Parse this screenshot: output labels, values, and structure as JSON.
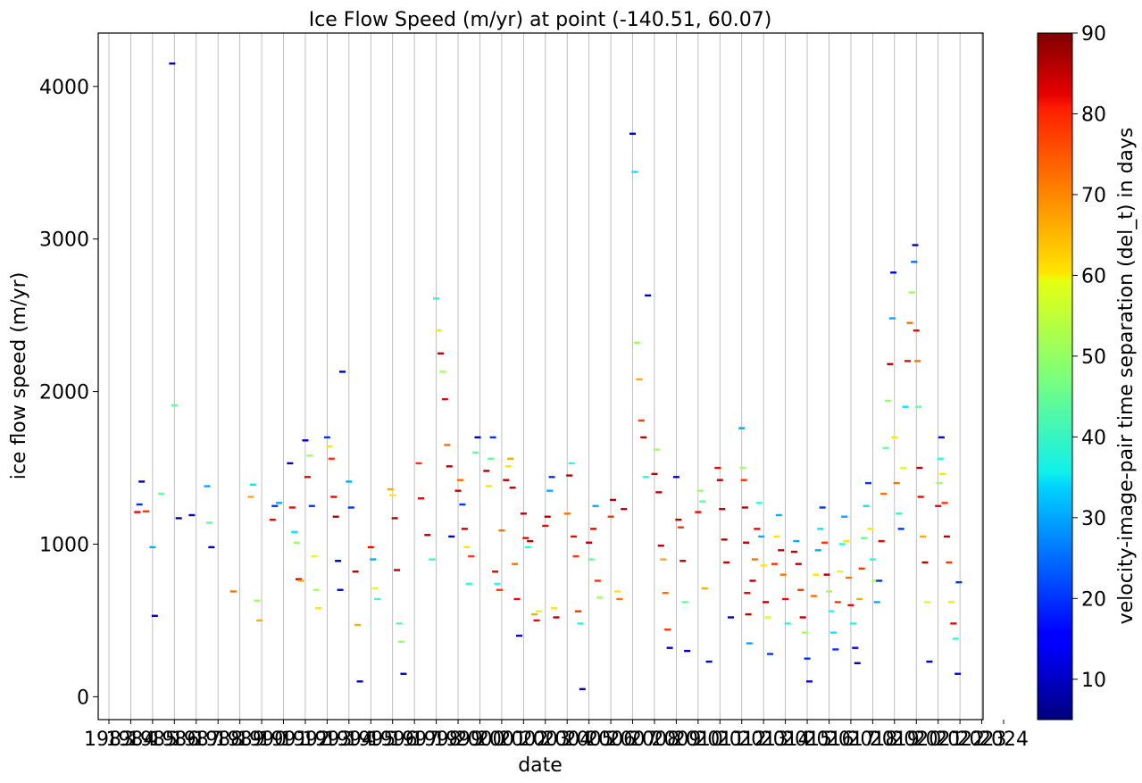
{
  "chart_data": {
    "type": "scatter",
    "title": "Ice Flow Speed (m/yr) at point (-140.51, 60.07)",
    "xlabel": "date",
    "ylabel": "ice flow speed (m/yr)",
    "xlim": [
      1983,
      2024
    ],
    "ylim": [
      -150,
      4350
    ],
    "y_ticks": [
      0,
      1000,
      2000,
      3000,
      4000
    ],
    "x_ticks": [
      "1983",
      "1984",
      "1985",
      "1986",
      "1987",
      "1988",
      "1989",
      "1990",
      "1991",
      "1992",
      "1993",
      "1994",
      "1995",
      "1996",
      "1997",
      "1998",
      "1999",
      "2000",
      "2001",
      "2002",
      "2003",
      "2004",
      "2005",
      "2006",
      "2007",
      "2008",
      "2009",
      "2010",
      "2011",
      "2012",
      "2013",
      "2014",
      "2015",
      "2016",
      "2017",
      "2018",
      "2019",
      "2020",
      "2021",
      "2022",
      "2023",
      "2024"
    ],
    "grid": "vertical lines at year ticks",
    "colorbar": {
      "label": "velocity-image-pair time separation (del_t) in days",
      "colormap": "jet",
      "range": [
        5,
        90
      ],
      "ticks": [
        10,
        20,
        30,
        40,
        50,
        60,
        70,
        80,
        90
      ]
    },
    "points": [
      [
        1984.3,
        1210,
        80
      ],
      [
        1984.4,
        1260,
        20
      ],
      [
        1984.5,
        1410,
        10
      ],
      [
        1984.7,
        1215,
        75
      ],
      [
        1985.0,
        980,
        30
      ],
      [
        1985.1,
        530,
        10
      ],
      [
        1985.4,
        1330,
        45
      ],
      [
        1985.9,
        4150,
        10
      ],
      [
        1986.0,
        1910,
        45
      ],
      [
        1986.2,
        1170,
        10
      ],
      [
        1986.8,
        1190,
        10
      ],
      [
        1987.5,
        1380,
        30
      ],
      [
        1987.6,
        1140,
        45
      ],
      [
        1987.7,
        980,
        10
      ],
      [
        1988.7,
        690,
        70
      ],
      [
        1989.5,
        1310,
        65
      ],
      [
        1989.6,
        1390,
        35
      ],
      [
        1989.8,
        630,
        50
      ],
      [
        1989.9,
        500,
        65
      ],
      [
        1990.5,
        1160,
        80
      ],
      [
        1990.6,
        1250,
        20
      ],
      [
        1990.8,
        1270,
        30
      ],
      [
        1991.3,
        1530,
        10
      ],
      [
        1991.4,
        1240,
        80
      ],
      [
        1991.5,
        1080,
        35
      ],
      [
        1991.6,
        1010,
        50
      ],
      [
        1991.7,
        770,
        85
      ],
      [
        1991.8,
        760,
        65
      ],
      [
        1992.0,
        1680,
        10
      ],
      [
        1992.1,
        1440,
        80
      ],
      [
        1992.2,
        1580,
        50
      ],
      [
        1992.3,
        1250,
        20
      ],
      [
        1992.4,
        920,
        55
      ],
      [
        1992.5,
        700,
        50
      ],
      [
        1992.6,
        580,
        60
      ],
      [
        1993.0,
        1700,
        20
      ],
      [
        1993.1,
        1640,
        60
      ],
      [
        1993.2,
        1560,
        75
      ],
      [
        1993.3,
        1310,
        80
      ],
      [
        1993.4,
        1180,
        85
      ],
      [
        1993.5,
        890,
        10
      ],
      [
        1993.6,
        700,
        15
      ],
      [
        1993.7,
        2130,
        10
      ],
      [
        1994.0,
        1410,
        30
      ],
      [
        1994.1,
        1240,
        20
      ],
      [
        1994.3,
        820,
        85
      ],
      [
        1994.4,
        470,
        65
      ],
      [
        1994.5,
        100,
        10
      ],
      [
        1995.0,
        980,
        80
      ],
      [
        1995.1,
        900,
        30
      ],
      [
        1995.2,
        710,
        55
      ],
      [
        1995.3,
        640,
        40
      ],
      [
        1995.9,
        1360,
        65
      ],
      [
        1996.0,
        1320,
        60
      ],
      [
        1996.1,
        1170,
        85
      ],
      [
        1996.2,
        830,
        85
      ],
      [
        1996.3,
        480,
        45
      ],
      [
        1996.4,
        360,
        50
      ],
      [
        1996.5,
        150,
        10
      ],
      [
        1997.2,
        1530,
        75
      ],
      [
        1997.3,
        1300,
        80
      ],
      [
        1997.6,
        1060,
        85
      ],
      [
        1997.8,
        900,
        40
      ],
      [
        1998.0,
        2610,
        40
      ],
      [
        1998.1,
        2400,
        60
      ],
      [
        1998.2,
        2250,
        85
      ],
      [
        1998.3,
        2130,
        50
      ],
      [
        1998.4,
        1950,
        80
      ],
      [
        1998.5,
        1650,
        70
      ],
      [
        1998.6,
        1510,
        85
      ],
      [
        1998.7,
        1050,
        10
      ],
      [
        1999.0,
        1350,
        85
      ],
      [
        1999.1,
        1420,
        70
      ],
      [
        1999.2,
        1260,
        20
      ],
      [
        1999.3,
        1100,
        85
      ],
      [
        1999.4,
        980,
        60
      ],
      [
        1999.5,
        740,
        40
      ],
      [
        1999.6,
        920,
        75
      ],
      [
        1999.8,
        1600,
        45
      ],
      [
        1999.9,
        1700,
        10
      ],
      [
        2000.3,
        1480,
        85
      ],
      [
        2000.4,
        1380,
        60
      ],
      [
        2000.5,
        1560,
        45
      ],
      [
        2000.6,
        1700,
        20
      ],
      [
        2000.7,
        820,
        80
      ],
      [
        2000.8,
        740,
        40
      ],
      [
        2000.9,
        700,
        75
      ],
      [
        2001.0,
        1090,
        70
      ],
      [
        2001.2,
        1420,
        85
      ],
      [
        2001.3,
        1510,
        60
      ],
      [
        2001.4,
        1560,
        65
      ],
      [
        2001.5,
        1370,
        85
      ],
      [
        2001.6,
        870,
        70
      ],
      [
        2001.7,
        640,
        80
      ],
      [
        2001.8,
        400,
        15
      ],
      [
        2002.0,
        1200,
        85
      ],
      [
        2002.1,
        1040,
        80
      ],
      [
        2002.2,
        980,
        40
      ],
      [
        2002.3,
        1020,
        85
      ],
      [
        2002.5,
        540,
        65
      ],
      [
        2002.6,
        500,
        80
      ],
      [
        2002.7,
        560,
        55
      ],
      [
        2003.0,
        1120,
        80
      ],
      [
        2003.1,
        1180,
        85
      ],
      [
        2003.2,
        1350,
        30
      ],
      [
        2003.3,
        1440,
        20
      ],
      [
        2003.4,
        580,
        60
      ],
      [
        2003.5,
        520,
        85
      ],
      [
        2004.0,
        1200,
        70
      ],
      [
        2004.1,
        1450,
        85
      ],
      [
        2004.2,
        1530,
        40
      ],
      [
        2004.3,
        1050,
        80
      ],
      [
        2004.4,
        920,
        75
      ],
      [
        2004.5,
        560,
        75
      ],
      [
        2004.6,
        480,
        40
      ],
      [
        2004.7,
        50,
        10
      ],
      [
        2005.0,
        1010,
        85
      ],
      [
        2005.1,
        900,
        45
      ],
      [
        2005.2,
        1100,
        80
      ],
      [
        2005.3,
        1250,
        30
      ],
      [
        2005.4,
        760,
        75
      ],
      [
        2005.5,
        650,
        50
      ],
      [
        2006.0,
        1180,
        75
      ],
      [
        2006.1,
        1290,
        85
      ],
      [
        2006.3,
        690,
        60
      ],
      [
        2006.4,
        640,
        70
      ],
      [
        2006.6,
        1230,
        85
      ],
      [
        2007.0,
        3690,
        15
      ],
      [
        2007.1,
        3440,
        35
      ],
      [
        2007.2,
        2320,
        50
      ],
      [
        2007.3,
        2080,
        65
      ],
      [
        2007.4,
        1810,
        75
      ],
      [
        2007.5,
        1700,
        85
      ],
      [
        2007.6,
        1440,
        40
      ],
      [
        2007.7,
        2630,
        10
      ],
      [
        2008.0,
        1460,
        85
      ],
      [
        2008.1,
        1620,
        50
      ],
      [
        2008.2,
        1340,
        85
      ],
      [
        2008.3,
        990,
        85
      ],
      [
        2008.4,
        900,
        65
      ],
      [
        2008.5,
        680,
        70
      ],
      [
        2008.6,
        440,
        75
      ],
      [
        2008.7,
        320,
        10
      ],
      [
        2009.0,
        1440,
        15
      ],
      [
        2009.1,
        1160,
        85
      ],
      [
        2009.2,
        1110,
        75
      ],
      [
        2009.3,
        890,
        85
      ],
      [
        2009.4,
        620,
        45
      ],
      [
        2009.5,
        300,
        10
      ],
      [
        2010.0,
        1210,
        80
      ],
      [
        2010.1,
        1350,
        50
      ],
      [
        2010.2,
        1280,
        45
      ],
      [
        2010.3,
        710,
        65
      ],
      [
        2010.5,
        230,
        10
      ],
      [
        2010.9,
        1500,
        80
      ],
      [
        2011.0,
        1420,
        85
      ],
      [
        2011.1,
        1230,
        85
      ],
      [
        2011.2,
        1030,
        85
      ],
      [
        2011.3,
        880,
        85
      ],
      [
        2011.5,
        520,
        10
      ],
      [
        2012.0,
        1760,
        30
      ],
      [
        2012.05,
        1500,
        50
      ],
      [
        2012.1,
        1420,
        75
      ],
      [
        2012.15,
        1240,
        85
      ],
      [
        2012.2,
        1010,
        85
      ],
      [
        2012.25,
        680,
        80
      ],
      [
        2012.3,
        540,
        85
      ],
      [
        2012.35,
        350,
        30
      ],
      [
        2012.5,
        760,
        85
      ],
      [
        2012.6,
        900,
        70
      ],
      [
        2012.7,
        1100,
        80
      ],
      [
        2012.8,
        1270,
        40
      ],
      [
        2012.9,
        1050,
        30
      ],
      [
        2013.0,
        860,
        60
      ],
      [
        2013.1,
        620,
        85
      ],
      [
        2013.2,
        520,
        55
      ],
      [
        2013.3,
        280,
        20
      ],
      [
        2013.5,
        870,
        75
      ],
      [
        2013.6,
        1050,
        60
      ],
      [
        2013.7,
        1190,
        30
      ],
      [
        2013.8,
        960,
        85
      ],
      [
        2013.9,
        800,
        70
      ],
      [
        2014.0,
        640,
        80
      ],
      [
        2014.1,
        480,
        40
      ],
      [
        2014.4,
        950,
        85
      ],
      [
        2014.5,
        1020,
        30
      ],
      [
        2014.6,
        870,
        85
      ],
      [
        2014.7,
        700,
        75
      ],
      [
        2014.8,
        520,
        85
      ],
      [
        2014.9,
        420,
        50
      ],
      [
        2015.0,
        250,
        20
      ],
      [
        2015.1,
        100,
        15
      ],
      [
        2015.3,
        660,
        70
      ],
      [
        2015.4,
        800,
        60
      ],
      [
        2015.5,
        960,
        30
      ],
      [
        2015.6,
        1100,
        35
      ],
      [
        2015.7,
        1240,
        20
      ],
      [
        2015.8,
        1010,
        75
      ],
      [
        2015.9,
        800,
        85
      ],
      [
        2016.0,
        690,
        50
      ],
      [
        2016.1,
        560,
        40
      ],
      [
        2016.2,
        420,
        35
      ],
      [
        2016.3,
        310,
        20
      ],
      [
        2016.4,
        620,
        75
      ],
      [
        2016.5,
        820,
        55
      ],
      [
        2016.6,
        1000,
        40
      ],
      [
        2016.7,
        1180,
        30
      ],
      [
        2016.8,
        1020,
        60
      ],
      [
        2016.9,
        780,
        70
      ],
      [
        2017.0,
        600,
        80
      ],
      [
        2017.1,
        480,
        40
      ],
      [
        2017.2,
        320,
        15
      ],
      [
        2017.3,
        220,
        10
      ],
      [
        2017.4,
        640,
        65
      ],
      [
        2017.5,
        840,
        75
      ],
      [
        2017.6,
        1040,
        45
      ],
      [
        2017.7,
        1250,
        35
      ],
      [
        2017.8,
        1400,
        20
      ],
      [
        2017.9,
        1100,
        60
      ],
      [
        2018.0,
        900,
        40
      ],
      [
        2018.1,
        760,
        50
      ],
      [
        2018.2,
        620,
        30
      ],
      [
        2018.3,
        760,
        20
      ],
      [
        2018.4,
        1020,
        80
      ],
      [
        2018.5,
        1330,
        70
      ],
      [
        2018.6,
        1630,
        45
      ],
      [
        2018.7,
        1940,
        50
      ],
      [
        2018.8,
        2180,
        85
      ],
      [
        2018.9,
        2480,
        30
      ],
      [
        2018.95,
        2780,
        15
      ],
      [
        2019.0,
        1700,
        60
      ],
      [
        2019.1,
        1400,
        70
      ],
      [
        2019.2,
        1200,
        40
      ],
      [
        2019.3,
        1100,
        20
      ],
      [
        2019.4,
        1500,
        55
      ],
      [
        2019.5,
        1900,
        35
      ],
      [
        2019.6,
        2200,
        80
      ],
      [
        2019.7,
        2450,
        70
      ],
      [
        2019.8,
        2650,
        50
      ],
      [
        2019.9,
        2850,
        25
      ],
      [
        2019.95,
        2960,
        10
      ],
      [
        2020.0,
        2400,
        80
      ],
      [
        2020.05,
        2200,
        70
      ],
      [
        2020.1,
        1900,
        45
      ],
      [
        2020.15,
        1500,
        85
      ],
      [
        2020.2,
        1310,
        80
      ],
      [
        2020.3,
        1050,
        65
      ],
      [
        2020.4,
        880,
        85
      ],
      [
        2020.5,
        620,
        55
      ],
      [
        2020.6,
        230,
        10
      ],
      [
        2021.0,
        1250,
        80
      ],
      [
        2021.05,
        1400,
        50
      ],
      [
        2021.1,
        1560,
        40
      ],
      [
        2021.15,
        1700,
        15
      ],
      [
        2021.2,
        1460,
        60
      ],
      [
        2021.3,
        1270,
        75
      ],
      [
        2021.4,
        1050,
        85
      ],
      [
        2021.5,
        880,
        75
      ],
      [
        2021.6,
        620,
        60
      ],
      [
        2021.7,
        480,
        80
      ],
      [
        2021.8,
        380,
        40
      ],
      [
        2021.9,
        150,
        15
      ],
      [
        2021.95,
        750,
        20
      ]
    ]
  }
}
